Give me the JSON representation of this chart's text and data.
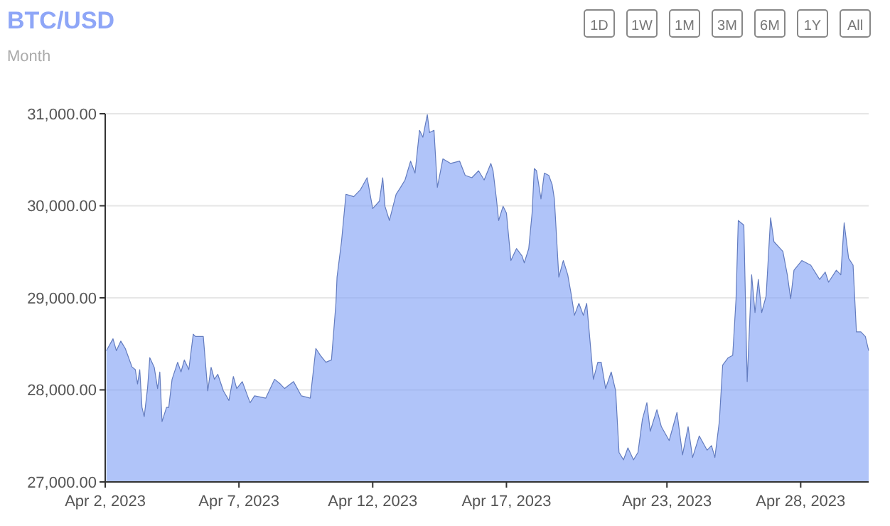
{
  "chart_data": {
    "type": "area",
    "title": "BTC/USD",
    "subtitle": "Month",
    "annotations": [
      "1D",
      "1W",
      "1M",
      "3M",
      "6M",
      "1Y",
      "All"
    ],
    "x": [
      "2023-04-02T01:00",
      "2023-04-02T07:00",
      "2023-04-02T10:00",
      "2023-04-02T14:00",
      "2023-04-02T18:00",
      "2023-04-03T00:00",
      "2023-04-03T03:00",
      "2023-04-03T05:00",
      "2023-04-03T07:00",
      "2023-04-03T09:00",
      "2023-04-03T11:00",
      "2023-04-03T14:00",
      "2023-04-03T16:00",
      "2023-04-03T20:00",
      "2023-04-03T23:00",
      "2023-04-04T01:00",
      "2023-04-04T03:00",
      "2023-04-04T07:00",
      "2023-04-04T09:00",
      "2023-04-04T12:00",
      "2023-04-04T17:00",
      "2023-04-04T20:00",
      "2023-04-04T23:00",
      "2023-04-05T03:00",
      "2023-04-05T07:00",
      "2023-04-05T09:00",
      "2023-04-05T16:00",
      "2023-04-05T20:00",
      "2023-04-05T23:00",
      "2023-04-06T02:00",
      "2023-04-06T05:00",
      "2023-04-06T10:00",
      "2023-04-06T15:00",
      "2023-04-06T19:00",
      "2023-04-06T22:00",
      "2023-04-07T03:00",
      "2023-04-07T10:00",
      "2023-04-07T14:00",
      "2023-04-08T00:00",
      "2023-04-08T08:00",
      "2023-04-08T13:00",
      "2023-04-08T17:00",
      "2023-04-09T01:00",
      "2023-04-09T08:00",
      "2023-04-09T16:00",
      "2023-04-09T21:00",
      "2023-04-10T01:00",
      "2023-04-10T06:00",
      "2023-04-10T11:00",
      "2023-04-10T15:00",
      "2023-04-10T16:00",
      "2023-04-10T20:00",
      "2023-04-11T00:00",
      "2023-04-11T07:00",
      "2023-04-11T13:00",
      "2023-04-11T19:00",
      "2023-04-12T00:00",
      "2023-04-12T06:00",
      "2023-04-12T09:00",
      "2023-04-12T11:00",
      "2023-04-12T15:00",
      "2023-04-12T21:00",
      "2023-04-13T01:00",
      "2023-04-13T05:00",
      "2023-04-13T10:00",
      "2023-04-13T14:00",
      "2023-04-13T18:00",
      "2023-04-13T21:00",
      "2023-04-14T01:00",
      "2023-04-14T03:00",
      "2023-04-14T07:00",
      "2023-04-14T10:00",
      "2023-04-14T15:00",
      "2023-04-14T22:00",
      "2023-04-15T06:00",
      "2023-04-15T11:00",
      "2023-04-15T17:00",
      "2023-04-15T23:00",
      "2023-04-16T04:00",
      "2023-04-16T10:00",
      "2023-04-16T12:00",
      "2023-04-16T15:00",
      "2023-04-16T17:00",
      "2023-04-16T21:00",
      "2023-04-17T00:00",
      "2023-04-17T04:00",
      "2023-04-17T09:00",
      "2023-04-17T14:00",
      "2023-04-17T16:00",
      "2023-04-17T20:00",
      "2023-04-17T23:00",
      "2023-04-18T01:00",
      "2023-04-18T03:00",
      "2023-04-18T07:00",
      "2023-04-18T10:00",
      "2023-04-18T14:00",
      "2023-04-18T17:00",
      "2023-04-18T19:00",
      "2023-04-18T23:00",
      "2023-04-19T03:00",
      "2023-04-19T07:00",
      "2023-04-19T10:00",
      "2023-04-19T13:00",
      "2023-04-19T17:00",
      "2023-04-19T21:00",
      "2023-04-20T00:00",
      "2023-04-20T03:00",
      "2023-04-20T06:00",
      "2023-04-20T10:00",
      "2023-04-20T13:00",
      "2023-04-20T17:00",
      "2023-04-20T22:00",
      "2023-04-21T02:00",
      "2023-04-21T05:00",
      "2023-04-21T09:00",
      "2023-04-21T13:00",
      "2023-04-21T18:00",
      "2023-04-21T22:00",
      "2023-04-22T02:00",
      "2023-04-22T06:00",
      "2023-04-22T09:00",
      "2023-04-22T15:00",
      "2023-04-22T19:00",
      "2023-04-23T02:00",
      "2023-04-23T09:00",
      "2023-04-23T14:00",
      "2023-04-23T19:00",
      "2023-04-23T23:00",
      "2023-04-24T05:00",
      "2023-04-24T12:00",
      "2023-04-24T16:00",
      "2023-04-24T19:00",
      "2023-04-24T23:00",
      "2023-04-25T02:00",
      "2023-04-25T07:00",
      "2023-04-25T11:00",
      "2023-04-25T14:00",
      "2023-04-25T16:00",
      "2023-04-25T21:00",
      "2023-04-26T00:00",
      "2023-04-26T04:00",
      "2023-04-26T07:00",
      "2023-04-26T10:00",
      "2023-04-26T13:00",
      "2023-04-26T17:00",
      "2023-04-26T21:00",
      "2023-04-27T00:00",
      "2023-04-27T08:00",
      "2023-04-27T12:00",
      "2023-04-27T15:00",
      "2023-04-27T18:00",
      "2023-04-28T01:00",
      "2023-04-28T09:00",
      "2023-04-28T17:00",
      "2023-04-28T22:00",
      "2023-04-29T01:00",
      "2023-04-29T08:00",
      "2023-04-29T12:00",
      "2023-04-29T15:00",
      "2023-04-29T19:00",
      "2023-04-29T23:00",
      "2023-04-30T02:00",
      "2023-04-30T06:00",
      "2023-04-30T10:00",
      "2023-04-30T13:00"
    ],
    "series": [
      {
        "color": "#7f9ff5",
        "values": [
          28425,
          28555,
          28425,
          28530,
          28450,
          28250,
          28220,
          28065,
          28220,
          27810,
          27710,
          28020,
          28350,
          28245,
          28015,
          28195,
          27655,
          27810,
          27810,
          28115,
          28300,
          28195,
          28325,
          28220,
          28605,
          28580,
          28580,
          27990,
          28245,
          28115,
          28170,
          27990,
          27885,
          28145,
          28015,
          28090,
          27860,
          27935,
          27910,
          28115,
          28065,
          28015,
          28090,
          27935,
          27910,
          28450,
          28375,
          28300,
          28325,
          28940,
          29225,
          29610,
          30125,
          30100,
          30175,
          30305,
          29970,
          30050,
          30305,
          29995,
          29840,
          30125,
          30200,
          30280,
          30485,
          30355,
          30820,
          30745,
          30990,
          30795,
          30820,
          30200,
          30510,
          30460,
          30485,
          30330,
          30305,
          30380,
          30280,
          30460,
          30380,
          30075,
          29840,
          29995,
          29920,
          29405,
          29535,
          29455,
          29380,
          29535,
          29920,
          30405,
          30380,
          30075,
          30355,
          30330,
          30230,
          30075,
          29225,
          29405,
          29250,
          29045,
          28810,
          28940,
          28810,
          28940,
          28530,
          28115,
          28300,
          28300,
          28015,
          28195,
          27990,
          27320,
          27240,
          27370,
          27240,
          27320,
          27680,
          27860,
          27550,
          27785,
          27600,
          27450,
          27755,
          27295,
          27600,
          27265,
          27500,
          27345,
          27395,
          27265,
          27655,
          28270,
          28350,
          28375,
          28990,
          29840,
          29790,
          28090,
          29250,
          28840,
          29200,
          28840,
          29020,
          29870,
          29610,
          29505,
          29250,
          28990,
          29300,
          29405,
          29355,
          29200,
          29280,
          29170,
          29300,
          29250,
          29815,
          29430,
          29355,
          28630,
          28630,
          28580,
          28425
        ]
      }
    ],
    "xlim": [
      "2023-04-02T00:00",
      "2023-04-30T13:00"
    ],
    "xticks": [
      {
        "value": "2023-04-02",
        "label": "Apr 2, 2023"
      },
      {
        "value": "2023-04-07",
        "label": "Apr 7, 2023"
      },
      {
        "value": "2023-04-12",
        "label": "Apr 12, 2023"
      },
      {
        "value": "2023-04-17",
        "label": "Apr 17, 2023"
      },
      {
        "value": "2023-04-23",
        "label": "Apr 23, 2023"
      },
      {
        "value": "2023-04-28",
        "label": "Apr 28, 2023"
      }
    ],
    "ylim": [
      27000,
      31000
    ],
    "yticks": [
      {
        "value": 27000,
        "label": "27,000.00"
      },
      {
        "value": 28000,
        "label": "28,000.00"
      },
      {
        "value": 29000,
        "label": "29,000.00"
      },
      {
        "value": 30000,
        "label": "30,000.00"
      },
      {
        "value": 31000,
        "label": "31,000.00"
      }
    ],
    "grid": "y"
  }
}
